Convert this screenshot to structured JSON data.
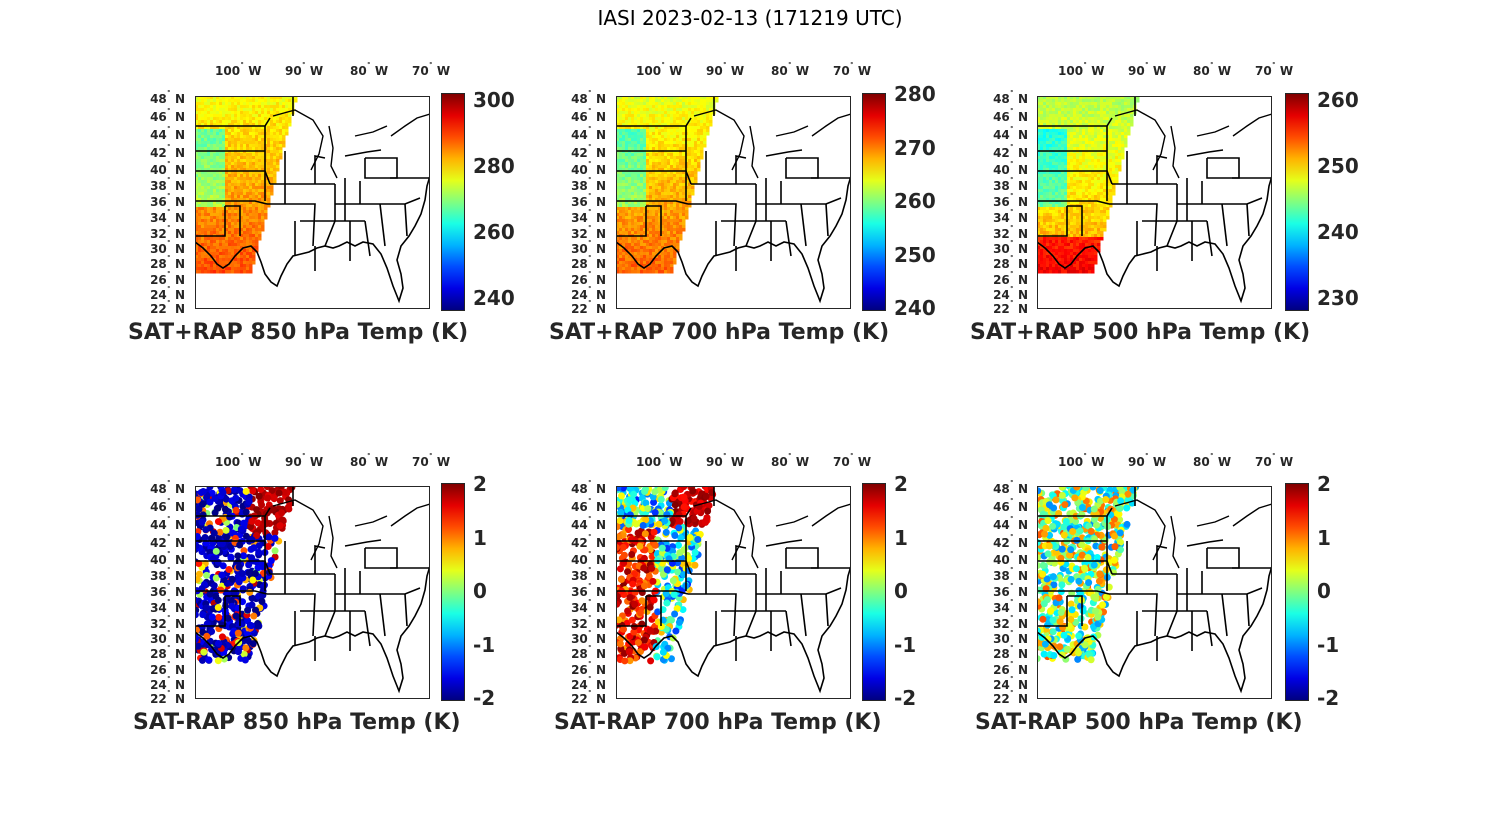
{
  "title": "IASI 2023-02-13 (171219 UTC)",
  "lon_labels": [
    "100",
    "W",
    "90",
    "W",
    "80",
    "W",
    "70",
    "W"
  ],
  "lat_labels": [
    "48",
    "46",
    "44",
    "42",
    "40",
    "38",
    "36",
    "34",
    "32",
    "30",
    "28",
    "26",
    "24",
    "22"
  ],
  "lat_suffix": "N",
  "panels": [
    {
      "title": "SAT+RAP 850 hPa Temp (K)",
      "ticks": [
        "300",
        "280",
        "260",
        "240"
      ],
      "colormap": "jet",
      "kind": "abs850"
    },
    {
      "title": "SAT+RAP 700 hPa Temp (K)",
      "ticks": [
        "280",
        "270",
        "260",
        "250",
        "240"
      ],
      "colormap": "jet",
      "kind": "abs700"
    },
    {
      "title": "SAT+RAP 500 hPa Temp (K)",
      "ticks": [
        "260",
        "250",
        "240",
        "230"
      ],
      "colormap": "jet",
      "kind": "abs500"
    },
    {
      "title": "SAT-RAP 850 hPa Temp (K)",
      "ticks": [
        "2",
        "1",
        "0",
        "-1",
        "-2"
      ],
      "colormap": "jet",
      "kind": "diff850"
    },
    {
      "title": "SAT-RAP 700 hPa Temp (K)",
      "ticks": [
        "2",
        "1",
        "0",
        "-1",
        "-2"
      ],
      "colormap": "jet",
      "kind": "diff700"
    },
    {
      "title": "SAT-RAP 500 hPa Temp (K)",
      "ticks": [
        "2",
        "1",
        "0",
        "-1",
        "-2"
      ],
      "colormap": "jet",
      "kind": "diff500"
    }
  ]
}
